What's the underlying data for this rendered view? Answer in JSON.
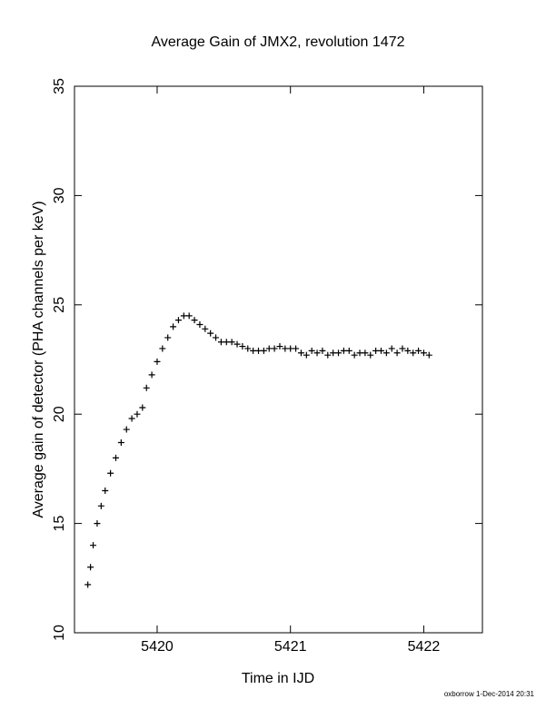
{
  "chart_data": {
    "type": "scatter",
    "title": "Average Gain of JMX2, revolution 1472",
    "x_label": "Time in IJD",
    "y_label": "Average gain of detector (PHA channels per keV)",
    "footer": "oxborrow 1-Dec-2014 20:31",
    "xlim": [
      5419.38,
      5422.44
    ],
    "xticks": [
      5420,
      5421,
      5422
    ],
    "ylim": [
      10,
      35
    ],
    "yticks": [
      10,
      15,
      20,
      25,
      30,
      35
    ],
    "marker": "+",
    "color": "#000000",
    "x": [
      5419.48,
      5419.5,
      5419.52,
      5419.55,
      5419.58,
      5419.61,
      5419.65,
      5419.69,
      5419.73,
      5419.77,
      5419.81,
      5419.85,
      5419.89,
      5419.92,
      5419.96,
      5420.0,
      5420.04,
      5420.08,
      5420.12,
      5420.16,
      5420.2,
      5420.24,
      5420.28,
      5420.32,
      5420.36,
      5420.4,
      5420.44,
      5420.48,
      5420.52,
      5420.56,
      5420.6,
      5420.64,
      5420.68,
      5420.72,
      5420.76,
      5420.8,
      5420.84,
      5420.88,
      5420.92,
      5420.96,
      5421.0,
      5421.04,
      5421.08,
      5421.12,
      5421.16,
      5421.2,
      5421.24,
      5421.28,
      5421.32,
      5421.36,
      5421.4,
      5421.44,
      5421.48,
      5421.52,
      5421.56,
      5421.6,
      5421.64,
      5421.68,
      5421.72,
      5421.76,
      5421.8,
      5421.84,
      5421.88,
      5421.92,
      5421.96,
      5422.0,
      5422.04
    ],
    "values": [
      12.2,
      13.0,
      14.0,
      15.0,
      15.8,
      16.5,
      17.3,
      18.0,
      18.7,
      19.3,
      19.8,
      20.0,
      20.3,
      21.2,
      21.8,
      22.4,
      23.0,
      23.5,
      24.0,
      24.3,
      24.5,
      24.5,
      24.3,
      24.1,
      23.9,
      23.7,
      23.5,
      23.3,
      23.3,
      23.3,
      23.2,
      23.1,
      23.0,
      22.9,
      22.9,
      22.9,
      23.0,
      23.0,
      23.1,
      23.0,
      23.0,
      23.0,
      22.8,
      22.7,
      22.9,
      22.8,
      22.9,
      22.7,
      22.8,
      22.8,
      22.9,
      22.9,
      22.7,
      22.8,
      22.8,
      22.7,
      22.9,
      22.9,
      22.8,
      23.0,
      22.8,
      23.0,
      22.9,
      22.8,
      22.9,
      22.8,
      22.7
    ]
  }
}
